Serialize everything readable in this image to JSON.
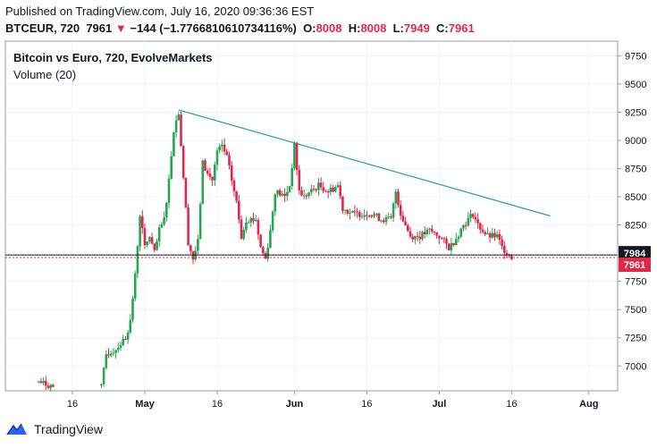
{
  "header": {
    "published": "Published on TradingView.com, July 16, 2020 09:36:36 EST",
    "symbol": "BTCEUR, 720",
    "last": "7961",
    "change": "−144 (−1.7766810610734116%)",
    "o_label": "O:",
    "o_val": "8008",
    "h_label": "H:",
    "h_val": "8008",
    "l_label": "L:",
    "l_val": "7949",
    "c_label": "C:",
    "c_val": "7961"
  },
  "footer": {
    "brand": "TradingView",
    "logo_icon": "tradingview-logo-icon"
  },
  "chart_data": {
    "type": "candlestick",
    "title": "Bitcoin vs Euro, 720, EvolveMarkets",
    "subtitle": "Volume (20)",
    "y_ticks": [
      "9750",
      "9500",
      "9250",
      "9000",
      "8750",
      "8500",
      "8250",
      "7750",
      "7500",
      "7250",
      "7000"
    ],
    "ylim": [
      6780,
      9880
    ],
    "x_ticks": [
      {
        "label": "16",
        "day": -15
      },
      {
        "label": "May",
        "day": 0
      },
      {
        "label": "16",
        "day": 15
      },
      {
        "label": "Jun",
        "day": 31
      },
      {
        "label": "16",
        "day": 46
      },
      {
        "label": "Jul",
        "day": 61
      },
      {
        "label": "16",
        "day": 76
      },
      {
        "label": "Aug",
        "day": 92
      }
    ],
    "price_labels": [
      {
        "value": "7984",
        "color": "#131722"
      },
      {
        "value": "7961",
        "color": "#e0294a"
      }
    ],
    "trendline": [
      {
        "date": "2020-05-08",
        "price": 9270
      },
      {
        "date": "2020-07-24",
        "price": 8330
      }
    ],
    "candle_colors": {
      "up": "#26a650",
      "down": "#e0294a"
    },
    "keypoints": [
      [
        "2020-04-09",
        6860
      ],
      [
        "2020-04-11",
        6830
      ],
      [
        "2020-04-13",
        6800
      ],
      [
        "2020-04-22",
        6810
      ],
      [
        "2020-04-23",
        7100
      ],
      [
        "2020-04-25",
        7150
      ],
      [
        "2020-04-27",
        7250
      ],
      [
        "2020-04-28",
        7400
      ],
      [
        "2020-04-29",
        7800
      ],
      [
        "2020-04-30",
        8350
      ],
      [
        "2020-05-01",
        8050
      ],
      [
        "2020-05-02",
        8150
      ],
      [
        "2020-05-03",
        8000
      ],
      [
        "2020-05-04",
        8200
      ],
      [
        "2020-05-05",
        8300
      ],
      [
        "2020-05-06",
        8650
      ],
      [
        "2020-05-07",
        9100
      ],
      [
        "2020-05-08",
        9250
      ],
      [
        "2020-05-10",
        8100
      ],
      [
        "2020-05-11",
        7950
      ],
      [
        "2020-05-12",
        8100
      ],
      [
        "2020-05-13",
        8800
      ],
      [
        "2020-05-14",
        8700
      ],
      [
        "2020-05-15",
        8650
      ],
      [
        "2020-05-16",
        8900
      ],
      [
        "2020-05-17",
        8950
      ],
      [
        "2020-05-18",
        8850
      ],
      [
        "2020-05-20",
        8450
      ],
      [
        "2020-05-21",
        8150
      ],
      [
        "2020-05-22",
        8300
      ],
      [
        "2020-05-24",
        8300
      ],
      [
        "2020-05-25",
        8050
      ],
      [
        "2020-05-26",
        7950
      ],
      [
        "2020-05-27",
        8200
      ],
      [
        "2020-05-28",
        8550
      ],
      [
        "2020-05-30",
        8500
      ],
      [
        "2020-05-31",
        8600
      ],
      [
        "2020-06-01",
        8950
      ],
      [
        "2020-06-02",
        8550
      ],
      [
        "2020-06-03",
        8500
      ],
      [
        "2020-06-06",
        8600
      ],
      [
        "2020-06-08",
        8550
      ],
      [
        "2020-06-10",
        8600
      ],
      [
        "2020-06-11",
        8400
      ],
      [
        "2020-06-13",
        8350
      ],
      [
        "2020-06-15",
        8350
      ],
      [
        "2020-06-17",
        8350
      ],
      [
        "2020-06-19",
        8300
      ],
      [
        "2020-06-21",
        8300
      ],
      [
        "2020-06-22",
        8550
      ],
      [
        "2020-06-23",
        8350
      ],
      [
        "2020-06-25",
        8150
      ],
      [
        "2020-06-27",
        8150
      ],
      [
        "2020-06-29",
        8200
      ],
      [
        "2020-07-01",
        8150
      ],
      [
        "2020-07-03",
        8050
      ],
      [
        "2020-07-04",
        8100
      ],
      [
        "2020-07-06",
        8250
      ],
      [
        "2020-07-08",
        8350
      ],
      [
        "2020-07-09",
        8250
      ],
      [
        "2020-07-11",
        8150
      ],
      [
        "2020-07-13",
        8150
      ],
      [
        "2020-07-14",
        8050
      ],
      [
        "2020-07-15",
        8010
      ],
      [
        "2020-07-16",
        7961
      ]
    ]
  }
}
